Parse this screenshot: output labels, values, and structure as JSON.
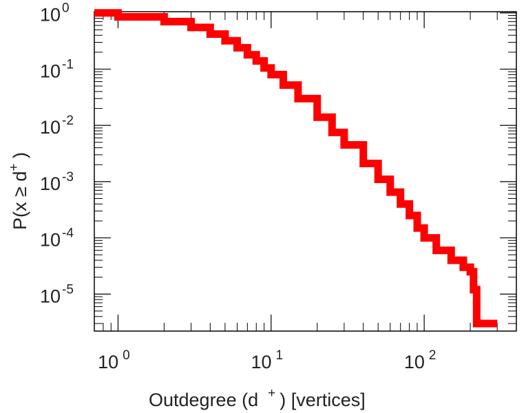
{
  "chart_data": {
    "type": "line",
    "title": "",
    "xlabel": {
      "prefix": "Outdegree (d",
      "sup": "+",
      "suffix": ") [vertices]"
    },
    "ylabel": {
      "prefix": "P(x ≥ d",
      "sup": "+",
      "suffix": " )"
    },
    "xscale": "log",
    "yscale": "log",
    "xlim": [
      0.7,
      400
    ],
    "ylim": [
      2.2e-06,
      1.05
    ],
    "grid": false,
    "legend": "none",
    "x_ticks": [
      {
        "value": 1,
        "base": "10",
        "exp": "0"
      },
      {
        "value": 10,
        "base": "10",
        "exp": "1"
      },
      {
        "value": 100,
        "base": "10",
        "exp": "2"
      }
    ],
    "y_ticks": [
      {
        "value": 1,
        "base": "10",
        "exp": "0"
      },
      {
        "value": 0.1,
        "base": "10",
        "exp": "-1"
      },
      {
        "value": 0.01,
        "base": "10",
        "exp": "-2"
      },
      {
        "value": 0.001,
        "base": "10",
        "exp": "-3"
      },
      {
        "value": 0.0001,
        "base": "10",
        "exp": "-4"
      },
      {
        "value": 1e-05,
        "base": "10",
        "exp": "-5"
      }
    ],
    "series": [
      {
        "color": "#ff0000",
        "x": [
          0.7,
          1,
          2,
          3,
          4,
          5,
          6,
          7,
          8,
          9,
          10,
          12,
          15,
          20,
          25,
          30,
          40,
          50,
          60,
          70,
          80,
          90,
          100,
          120,
          150,
          180,
          200,
          210,
          220,
          300
        ],
        "y": [
          1.0,
          0.85,
          0.7,
          0.55,
          0.42,
          0.32,
          0.24,
          0.18,
          0.14,
          0.105,
          0.08,
          0.052,
          0.03,
          0.014,
          0.0075,
          0.0045,
          0.0021,
          0.0011,
          0.00065,
          0.0004,
          0.00025,
          0.00015,
          0.0001,
          6e-05,
          4e-05,
          3e-05,
          2.5e-05,
          1.2e-05,
          3e-06,
          3e-06
        ]
      }
    ]
  }
}
